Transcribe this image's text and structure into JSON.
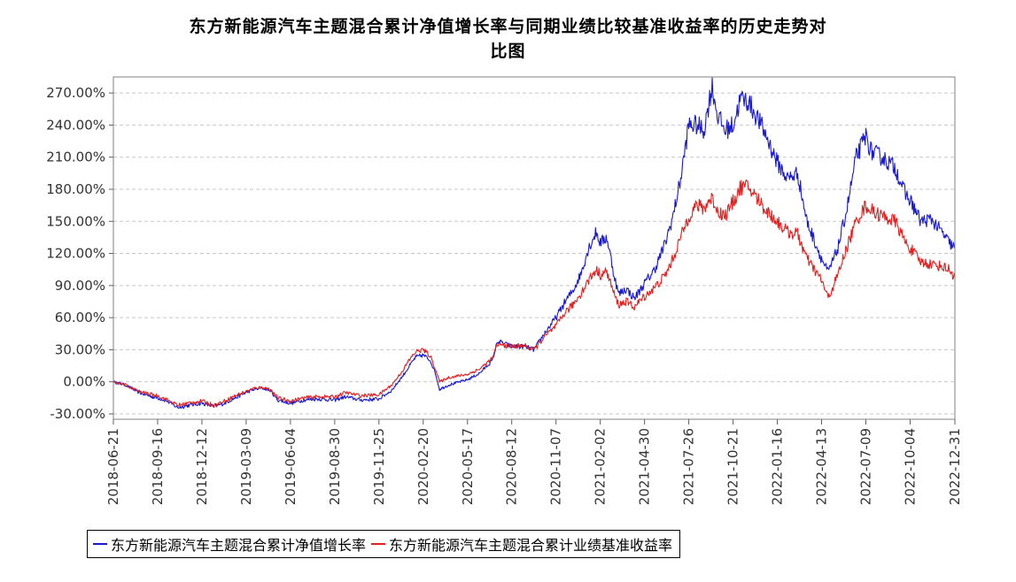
{
  "chart_data": {
    "type": "line",
    "title": "东方新能源汽车主题混合累计净值增长率与同期业绩比较基准收益率的历史走势对比图",
    "title_lines": [
      "东方新能源汽车主题混合累计净值增长率与同期业绩比较基准收益率的历史走势对",
      "比图"
    ],
    "xlabel": "",
    "ylabel": "",
    "x_range": [
      "2018-06-21",
      "2022-12-31"
    ],
    "ylim": [
      -35,
      285
    ],
    "y_ticks": [
      -30,
      0,
      30,
      60,
      90,
      120,
      150,
      180,
      210,
      240,
      270
    ],
    "y_tick_labels": [
      "-30.00%",
      "0.00%",
      "30.00%",
      "60.00%",
      "90.00%",
      "120.00%",
      "150.00%",
      "180.00%",
      "210.00%",
      "240.00%",
      "270.00%"
    ],
    "x_tick_labels": [
      "2018-06-21",
      "2018-09-16",
      "2018-12-12",
      "2019-03-09",
      "2019-06-04",
      "2019-08-30",
      "2019-11-25",
      "2020-02-20",
      "2020-05-17",
      "2020-08-12",
      "2020-11-07",
      "2021-02-02",
      "2021-04-30",
      "2021-07-26",
      "2021-10-21",
      "2022-01-16",
      "2022-04-13",
      "2022-07-09",
      "2022-10-04",
      "2022-12-31"
    ],
    "grid": "horizontal-dashed",
    "legend_position": "bottom",
    "series": [
      {
        "name": "东方新能源汽车主题混合累计净值增长率",
        "color": "#1a1acd",
        "points": [
          [
            "2018-06-21",
            0
          ],
          [
            "2018-07-15",
            -3
          ],
          [
            "2018-08-10",
            -10
          ],
          [
            "2018-09-05",
            -14
          ],
          [
            "2018-09-16",
            -15
          ],
          [
            "2018-10-05",
            -18
          ],
          [
            "2018-10-25",
            -24
          ],
          [
            "2018-11-15",
            -22
          ],
          [
            "2018-12-12",
            -20
          ],
          [
            "2019-01-05",
            -23
          ],
          [
            "2019-01-25",
            -20
          ],
          [
            "2019-02-20",
            -14
          ],
          [
            "2019-03-09",
            -10
          ],
          [
            "2019-03-25",
            -7
          ],
          [
            "2019-04-10",
            -6
          ],
          [
            "2019-04-25",
            -8
          ],
          [
            "2019-05-10",
            -17
          ],
          [
            "2019-06-04",
            -20
          ],
          [
            "2019-07-01",
            -17
          ],
          [
            "2019-07-25",
            -16
          ],
          [
            "2019-08-30",
            -17
          ],
          [
            "2019-09-20",
            -14
          ],
          [
            "2019-10-20",
            -17
          ],
          [
            "2019-11-25",
            -16
          ],
          [
            "2019-12-20",
            -8
          ],
          [
            "2020-01-10",
            5
          ],
          [
            "2020-01-23",
            14
          ],
          [
            "2020-02-05",
            23
          ],
          [
            "2020-02-20",
            25
          ],
          [
            "2020-03-05",
            20
          ],
          [
            "2020-03-15",
            8
          ],
          [
            "2020-03-23",
            -7
          ],
          [
            "2020-04-10",
            -3
          ],
          [
            "2020-05-17",
            2
          ],
          [
            "2020-06-10",
            8
          ],
          [
            "2020-07-05",
            20
          ],
          [
            "2020-07-15",
            38
          ],
          [
            "2020-08-12",
            33
          ],
          [
            "2020-09-05",
            33
          ],
          [
            "2020-09-25",
            30
          ],
          [
            "2020-10-15",
            45
          ],
          [
            "2020-11-07",
            60
          ],
          [
            "2020-11-25",
            75
          ],
          [
            "2020-12-10",
            85
          ],
          [
            "2020-12-25",
            100
          ],
          [
            "2021-01-10",
            125
          ],
          [
            "2021-01-25",
            140
          ],
          [
            "2021-02-02",
            130
          ],
          [
            "2021-02-15",
            135
          ],
          [
            "2021-03-01",
            100
          ],
          [
            "2021-03-10",
            82
          ],
          [
            "2021-03-25",
            87
          ],
          [
            "2021-04-10",
            78
          ],
          [
            "2021-04-30",
            92
          ],
          [
            "2021-05-20",
            105
          ],
          [
            "2021-06-10",
            130
          ],
          [
            "2021-06-25",
            155
          ],
          [
            "2021-07-10",
            190
          ],
          [
            "2021-07-26",
            240
          ],
          [
            "2021-08-10",
            240
          ],
          [
            "2021-08-25",
            235
          ],
          [
            "2021-09-05",
            265
          ],
          [
            "2021-09-10",
            276
          ],
          [
            "2021-09-20",
            250
          ],
          [
            "2021-10-05",
            235
          ],
          [
            "2021-10-21",
            240
          ],
          [
            "2021-11-05",
            265
          ],
          [
            "2021-11-20",
            262
          ],
          [
            "2021-12-10",
            245
          ],
          [
            "2021-12-25",
            230
          ],
          [
            "2022-01-16",
            205
          ],
          [
            "2022-02-05",
            190
          ],
          [
            "2022-02-25",
            195
          ],
          [
            "2022-03-15",
            150
          ],
          [
            "2022-04-13",
            115
          ],
          [
            "2022-04-26",
            102
          ],
          [
            "2022-05-15",
            125
          ],
          [
            "2022-06-01",
            160
          ],
          [
            "2022-06-20",
            210
          ],
          [
            "2022-07-09",
            230
          ],
          [
            "2022-07-20",
            215
          ],
          [
            "2022-08-10",
            210
          ],
          [
            "2022-09-05",
            200
          ],
          [
            "2022-09-25",
            175
          ],
          [
            "2022-10-04",
            170
          ],
          [
            "2022-10-25",
            150
          ],
          [
            "2022-11-15",
            152
          ],
          [
            "2022-12-05",
            140
          ],
          [
            "2022-12-20",
            130
          ],
          [
            "2022-12-31",
            125
          ]
        ]
      },
      {
        "name": "东方新能源汽车主题混合累计业绩基准收益率",
        "color": "#e02020",
        "points": [
          [
            "2018-06-21",
            0
          ],
          [
            "2018-07-15",
            -3
          ],
          [
            "2018-08-10",
            -9
          ],
          [
            "2018-09-05",
            -12
          ],
          [
            "2018-09-16",
            -13
          ],
          [
            "2018-10-05",
            -17
          ],
          [
            "2018-10-25",
            -22
          ],
          [
            "2018-11-15",
            -20
          ],
          [
            "2018-12-12",
            -18
          ],
          [
            "2019-01-05",
            -22
          ],
          [
            "2019-01-25",
            -18
          ],
          [
            "2019-02-20",
            -12
          ],
          [
            "2019-03-09",
            -9
          ],
          [
            "2019-03-25",
            -6
          ],
          [
            "2019-04-10",
            -5
          ],
          [
            "2019-04-25",
            -7
          ],
          [
            "2019-05-10",
            -15
          ],
          [
            "2019-06-04",
            -18
          ],
          [
            "2019-07-01",
            -15
          ],
          [
            "2019-07-25",
            -14
          ],
          [
            "2019-08-30",
            -14
          ],
          [
            "2019-09-20",
            -10
          ],
          [
            "2019-10-20",
            -13
          ],
          [
            "2019-11-25",
            -12
          ],
          [
            "2019-12-20",
            -3
          ],
          [
            "2020-01-10",
            10
          ],
          [
            "2020-01-23",
            20
          ],
          [
            "2020-02-05",
            28
          ],
          [
            "2020-02-20",
            30
          ],
          [
            "2020-03-05",
            24
          ],
          [
            "2020-03-15",
            12
          ],
          [
            "2020-03-23",
            0
          ],
          [
            "2020-04-10",
            4
          ],
          [
            "2020-05-17",
            7
          ],
          [
            "2020-06-10",
            12
          ],
          [
            "2020-07-05",
            22
          ],
          [
            "2020-07-15",
            35
          ],
          [
            "2020-08-12",
            33
          ],
          [
            "2020-09-05",
            34
          ],
          [
            "2020-09-25",
            30
          ],
          [
            "2020-10-15",
            42
          ],
          [
            "2020-11-07",
            52
          ],
          [
            "2020-11-25",
            65
          ],
          [
            "2020-12-10",
            72
          ],
          [
            "2020-12-25",
            82
          ],
          [
            "2021-01-10",
            95
          ],
          [
            "2021-01-25",
            105
          ],
          [
            "2021-02-02",
            100
          ],
          [
            "2021-02-15",
            103
          ],
          [
            "2021-03-01",
            82
          ],
          [
            "2021-03-10",
            72
          ],
          [
            "2021-03-25",
            75
          ],
          [
            "2021-04-10",
            70
          ],
          [
            "2021-04-30",
            80
          ],
          [
            "2021-05-20",
            88
          ],
          [
            "2021-06-10",
            100
          ],
          [
            "2021-06-25",
            115
          ],
          [
            "2021-07-10",
            135
          ],
          [
            "2021-07-26",
            155
          ],
          [
            "2021-08-10",
            165
          ],
          [
            "2021-08-25",
            162
          ],
          [
            "2021-09-05",
            170
          ],
          [
            "2021-09-10",
            172
          ],
          [
            "2021-09-20",
            160
          ],
          [
            "2021-10-05",
            155
          ],
          [
            "2021-10-21",
            168
          ],
          [
            "2021-11-05",
            182
          ],
          [
            "2021-11-20",
            182
          ],
          [
            "2021-12-10",
            170
          ],
          [
            "2021-12-25",
            160
          ],
          [
            "2022-01-16",
            150
          ],
          [
            "2022-02-05",
            140
          ],
          [
            "2022-02-25",
            138
          ],
          [
            "2022-03-15",
            115
          ],
          [
            "2022-04-13",
            95
          ],
          [
            "2022-04-26",
            78
          ],
          [
            "2022-05-15",
            100
          ],
          [
            "2022-06-01",
            125
          ],
          [
            "2022-06-20",
            150
          ],
          [
            "2022-07-09",
            165
          ],
          [
            "2022-07-20",
            160
          ],
          [
            "2022-08-10",
            155
          ],
          [
            "2022-09-05",
            150
          ],
          [
            "2022-09-25",
            130
          ],
          [
            "2022-10-04",
            125
          ],
          [
            "2022-10-25",
            112
          ],
          [
            "2022-11-15",
            110
          ],
          [
            "2022-12-05",
            108
          ],
          [
            "2022-12-20",
            105
          ],
          [
            "2022-12-31",
            98
          ]
        ]
      }
    ]
  }
}
